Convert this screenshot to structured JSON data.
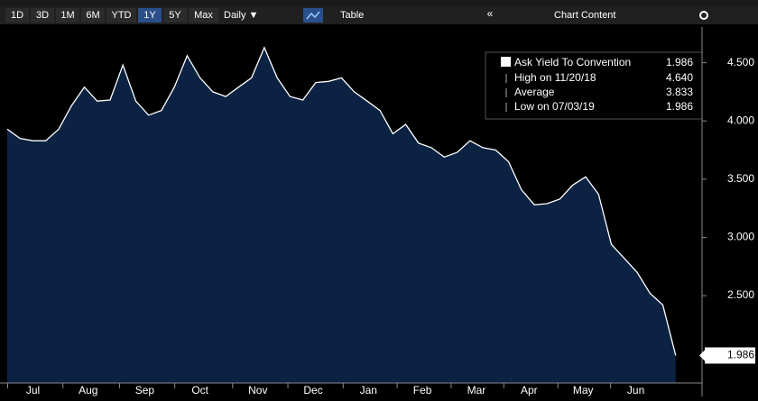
{
  "chart_data": {
    "type": "area",
    "toolbar": {
      "ranges": [
        "1D",
        "3D",
        "1M",
        "6M",
        "YTD",
        "1Y",
        "5Y",
        "Max"
      ],
      "active": "1Y",
      "frequency": "Daily ▼",
      "table": "Table",
      "collapse": "«",
      "content": "Chart Content"
    },
    "legend": {
      "series_label": "Ask Yield To Convention",
      "series_value": "1.986",
      "rows": [
        {
          "label": "High on 11/20/18",
          "value": "4.640"
        },
        {
          "label": "Average",
          "value": "3.833"
        },
        {
          "label": "Low on 07/03/19",
          "value": "1.986"
        }
      ]
    },
    "series": [
      {
        "name": "Ask Yield To Convention",
        "color": "#ffffff",
        "fill": "#0c2242",
        "values": [
          3.93,
          3.85,
          3.83,
          3.83,
          3.93,
          4.13,
          4.29,
          4.17,
          4.18,
          4.48,
          4.17,
          4.05,
          4.09,
          4.29,
          4.56,
          4.37,
          4.25,
          4.21,
          4.29,
          4.37,
          4.63,
          4.37,
          4.21,
          4.18,
          4.33,
          4.34,
          4.37,
          4.25,
          4.17,
          4.09,
          3.89,
          3.97,
          3.81,
          3.77,
          3.69,
          3.73,
          3.83,
          3.77,
          3.75,
          3.65,
          3.41,
          3.28,
          3.29,
          3.33,
          3.45,
          3.52,
          3.37,
          2.94,
          2.82,
          2.7,
          2.52,
          2.42,
          1.986
        ]
      }
    ],
    "xlim": [
      0,
      53
    ],
    "xticks": [
      {
        "value": 2.0,
        "label": "Jul"
      },
      {
        "value": 6.3,
        "label": "Aug"
      },
      {
        "value": 10.7,
        "label": "Sep"
      },
      {
        "value": 15.0,
        "label": "Oct"
      },
      {
        "value": 19.5,
        "label": "Nov"
      },
      {
        "value": 23.8,
        "label": "Dec"
      },
      {
        "value": 28.1,
        "label": "Jan"
      },
      {
        "value": 32.3,
        "label": "Feb"
      },
      {
        "value": 36.5,
        "label": "Mar"
      },
      {
        "value": 40.6,
        "label": "Apr"
      },
      {
        "value": 44.8,
        "label": "May"
      },
      {
        "value": 48.9,
        "label": "Jun"
      }
    ],
    "ylim": [
      1.75,
      4.76
    ],
    "yticks": [
      {
        "value": 2.5,
        "label": "2.500"
      },
      {
        "value": 3.0,
        "label": "3.000"
      },
      {
        "value": 3.5,
        "label": "3.500"
      },
      {
        "value": 4.0,
        "label": "4.000"
      },
      {
        "value": 4.5,
        "label": "4.500"
      }
    ]
  }
}
